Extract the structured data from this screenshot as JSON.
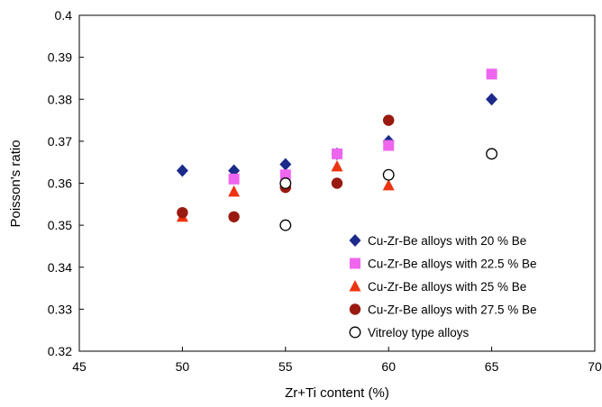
{
  "chart_data": {
    "type": "scatter",
    "title": "",
    "xlabel": "Zr+Ti content (%)",
    "ylabel": "Poisson's ratio",
    "xlim": [
      45,
      70
    ],
    "ylim": [
      0.32,
      0.4
    ],
    "xticks": [
      45,
      50,
      55,
      60,
      65,
      70
    ],
    "yticks": [
      0.32,
      0.33,
      0.34,
      0.35,
      0.36,
      0.37,
      0.38,
      0.39,
      0.4
    ],
    "xtick_labels": [
      "45",
      "50",
      "55",
      "60",
      "65",
      "70"
    ],
    "ytick_labels": [
      "0.32",
      "0.33",
      "0.34",
      "0.35",
      "0.36",
      "0.37",
      "0.38",
      "0.39",
      "0.4"
    ],
    "grid": false,
    "legend_position": "bottom-right",
    "series": [
      {
        "name": "Cu-Zr-Be alloys with 20 % Be",
        "marker": "diamond",
        "color": "#1c2a8a",
        "points": [
          [
            50,
            0.363
          ],
          [
            52.5,
            0.363
          ],
          [
            55,
            0.3645
          ],
          [
            57.5,
            0.367
          ],
          [
            60,
            0.37
          ],
          [
            65,
            0.38
          ]
        ]
      },
      {
        "name": "Cu-Zr-Be alloys with 22.5 % Be",
        "marker": "square",
        "color": "#ee66ee",
        "points": [
          [
            52.5,
            0.361
          ],
          [
            55,
            0.362
          ],
          [
            57.5,
            0.367
          ],
          [
            60,
            0.369
          ],
          [
            65,
            0.386
          ]
        ]
      },
      {
        "name": "Cu-Zr-Be alloys with 25 % Be",
        "marker": "triangle",
        "color": "#ee3311",
        "points": [
          [
            50,
            0.352
          ],
          [
            52.5,
            0.358
          ],
          [
            55,
            0.36
          ],
          [
            57.5,
            0.364
          ],
          [
            60,
            0.3595
          ]
        ]
      },
      {
        "name": "Cu-Zr-Be alloys with 27.5 % Be",
        "marker": "circle",
        "color": "#991a10",
        "points": [
          [
            50,
            0.353
          ],
          [
            52.5,
            0.352
          ],
          [
            55,
            0.359
          ],
          [
            57.5,
            0.36
          ],
          [
            60,
            0.375
          ]
        ]
      },
      {
        "name": "Vitreloy type alloys",
        "marker": "open-circle",
        "color": "#000000",
        "points": [
          [
            55,
            0.35
          ],
          [
            55,
            0.36
          ],
          [
            60,
            0.362
          ],
          [
            65,
            0.367
          ]
        ]
      }
    ]
  }
}
